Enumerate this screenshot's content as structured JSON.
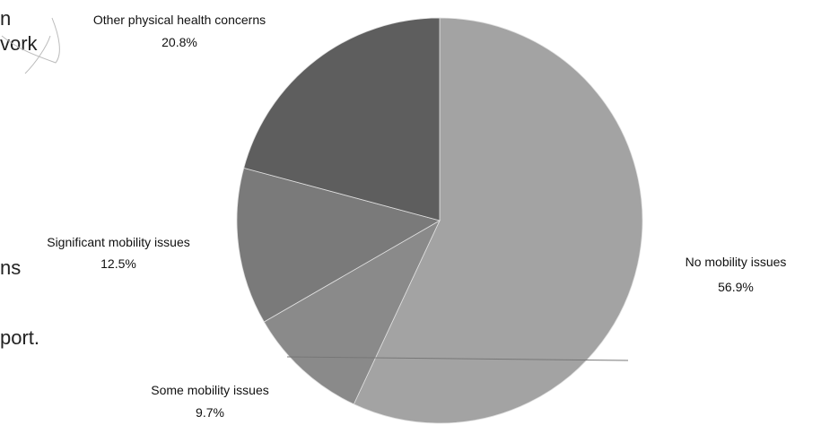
{
  "background_text": [
    "n",
    "vork",
    "ns",
    "port."
  ],
  "chart_data": {
    "type": "pie",
    "title": "",
    "start_angle_deg": 0,
    "direction": "clockwise",
    "slices": [
      {
        "label": "No mobility issues",
        "value": 56.9,
        "value_label": "56.9%",
        "color": "#a3a3a3"
      },
      {
        "label": "Some mobility issues",
        "value": 9.7,
        "value_label": "9.7%",
        "color": "#8a8a8a"
      },
      {
        "label": "Significant mobility issues",
        "value": 12.5,
        "value_label": "12.5%",
        "color": "#7a7a7a"
      },
      {
        "label": "Other physical health concerns",
        "value": 20.8,
        "value_label": "20.8%",
        "color": "#5e5e5e"
      }
    ]
  }
}
